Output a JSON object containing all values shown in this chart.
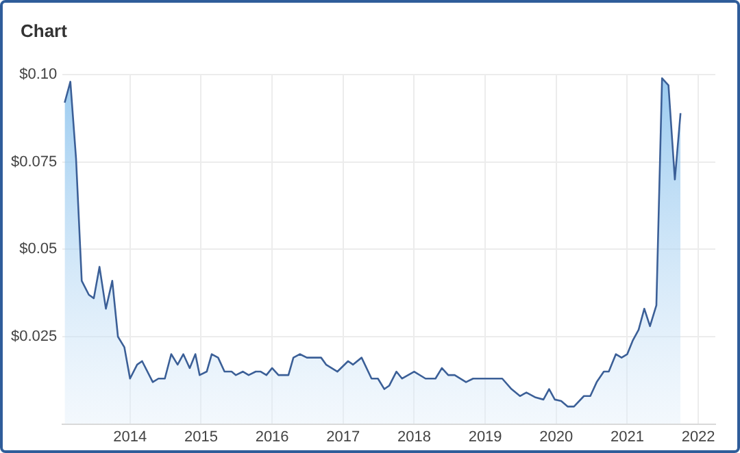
{
  "chart_data": {
    "type": "area",
    "title": "Chart",
    "x": [
      2013.08,
      2013.16,
      2013.24,
      2013.32,
      2013.42,
      2013.49,
      2013.57,
      2013.66,
      2013.75,
      2013.83,
      2013.92,
      2014.0,
      2014.1,
      2014.17,
      2014.32,
      2014.4,
      2014.49,
      2014.58,
      2014.67,
      2014.75,
      2014.84,
      2014.92,
      2014.98,
      2015.08,
      2015.15,
      2015.24,
      2015.33,
      2015.43,
      2015.49,
      2015.59,
      2015.67,
      2015.77,
      2015.84,
      2015.92,
      2016.0,
      2016.09,
      2016.23,
      2016.3,
      2016.39,
      2016.49,
      2016.69,
      2016.76,
      2016.92,
      2017.07,
      2017.14,
      2017.26,
      2017.4,
      2017.49,
      2017.58,
      2017.65,
      2017.75,
      2017.83,
      2018.0,
      2018.16,
      2018.3,
      2018.39,
      2018.48,
      2018.57,
      2018.73,
      2018.83,
      2019.24,
      2019.37,
      2019.49,
      2019.58,
      2019.71,
      2019.82,
      2019.9,
      2019.98,
      2020.07,
      2020.16,
      2020.25,
      2020.39,
      2020.48,
      2020.57,
      2020.67,
      2020.74,
      2020.84,
      2020.92,
      2021.0,
      2021.08,
      2021.16,
      2021.24,
      2021.32,
      2021.41,
      2021.49,
      2021.58,
      2021.67,
      2021.75
    ],
    "series": [
      {
        "color": "#3b5f97",
        "values": [
          0.092,
          0.098,
          0.076,
          0.041,
          0.037,
          0.036,
          0.045,
          0.033,
          0.041,
          0.025,
          0.022,
          0.013,
          0.017,
          0.018,
          0.012,
          0.013,
          0.013,
          0.02,
          0.017,
          0.02,
          0.016,
          0.02,
          0.014,
          0.015,
          0.02,
          0.019,
          0.015,
          0.015,
          0.014,
          0.015,
          0.014,
          0.015,
          0.015,
          0.014,
          0.016,
          0.014,
          0.014,
          0.019,
          0.02,
          0.019,
          0.019,
          0.017,
          0.015,
          0.018,
          0.017,
          0.019,
          0.013,
          0.013,
          0.01,
          0.011,
          0.015,
          0.013,
          0.015,
          0.013,
          0.013,
          0.016,
          0.014,
          0.014,
          0.012,
          0.013,
          0.013,
          0.01,
          0.008,
          0.009,
          0.0076,
          0.007,
          0.01,
          0.007,
          0.0066,
          0.005,
          0.005,
          0.008,
          0.008,
          0.012,
          0.015,
          0.015,
          0.02,
          0.019,
          0.02,
          0.024,
          0.027,
          0.033,
          0.028,
          0.034,
          0.099,
          0.097,
          0.07,
          0.089
        ]
      }
    ],
    "xlim": [
      2013.05,
      2022.24
    ],
    "xticks": [
      2014,
      2015,
      2016,
      2017,
      2018,
      2019,
      2020,
      2021,
      2022
    ],
    "ylim": [
      0,
      0.1
    ],
    "yticks": [
      {
        "value": 0,
        "label": null
      },
      {
        "value": 0.025,
        "label": "$0.025"
      },
      {
        "value": 0.05,
        "label": "$0.05"
      },
      {
        "value": 0.075,
        "label": "$0.075"
      },
      {
        "value": 0.1,
        "label": "$0.10"
      }
    ],
    "grid": true,
    "marker": "none",
    "line_style": "solid"
  }
}
